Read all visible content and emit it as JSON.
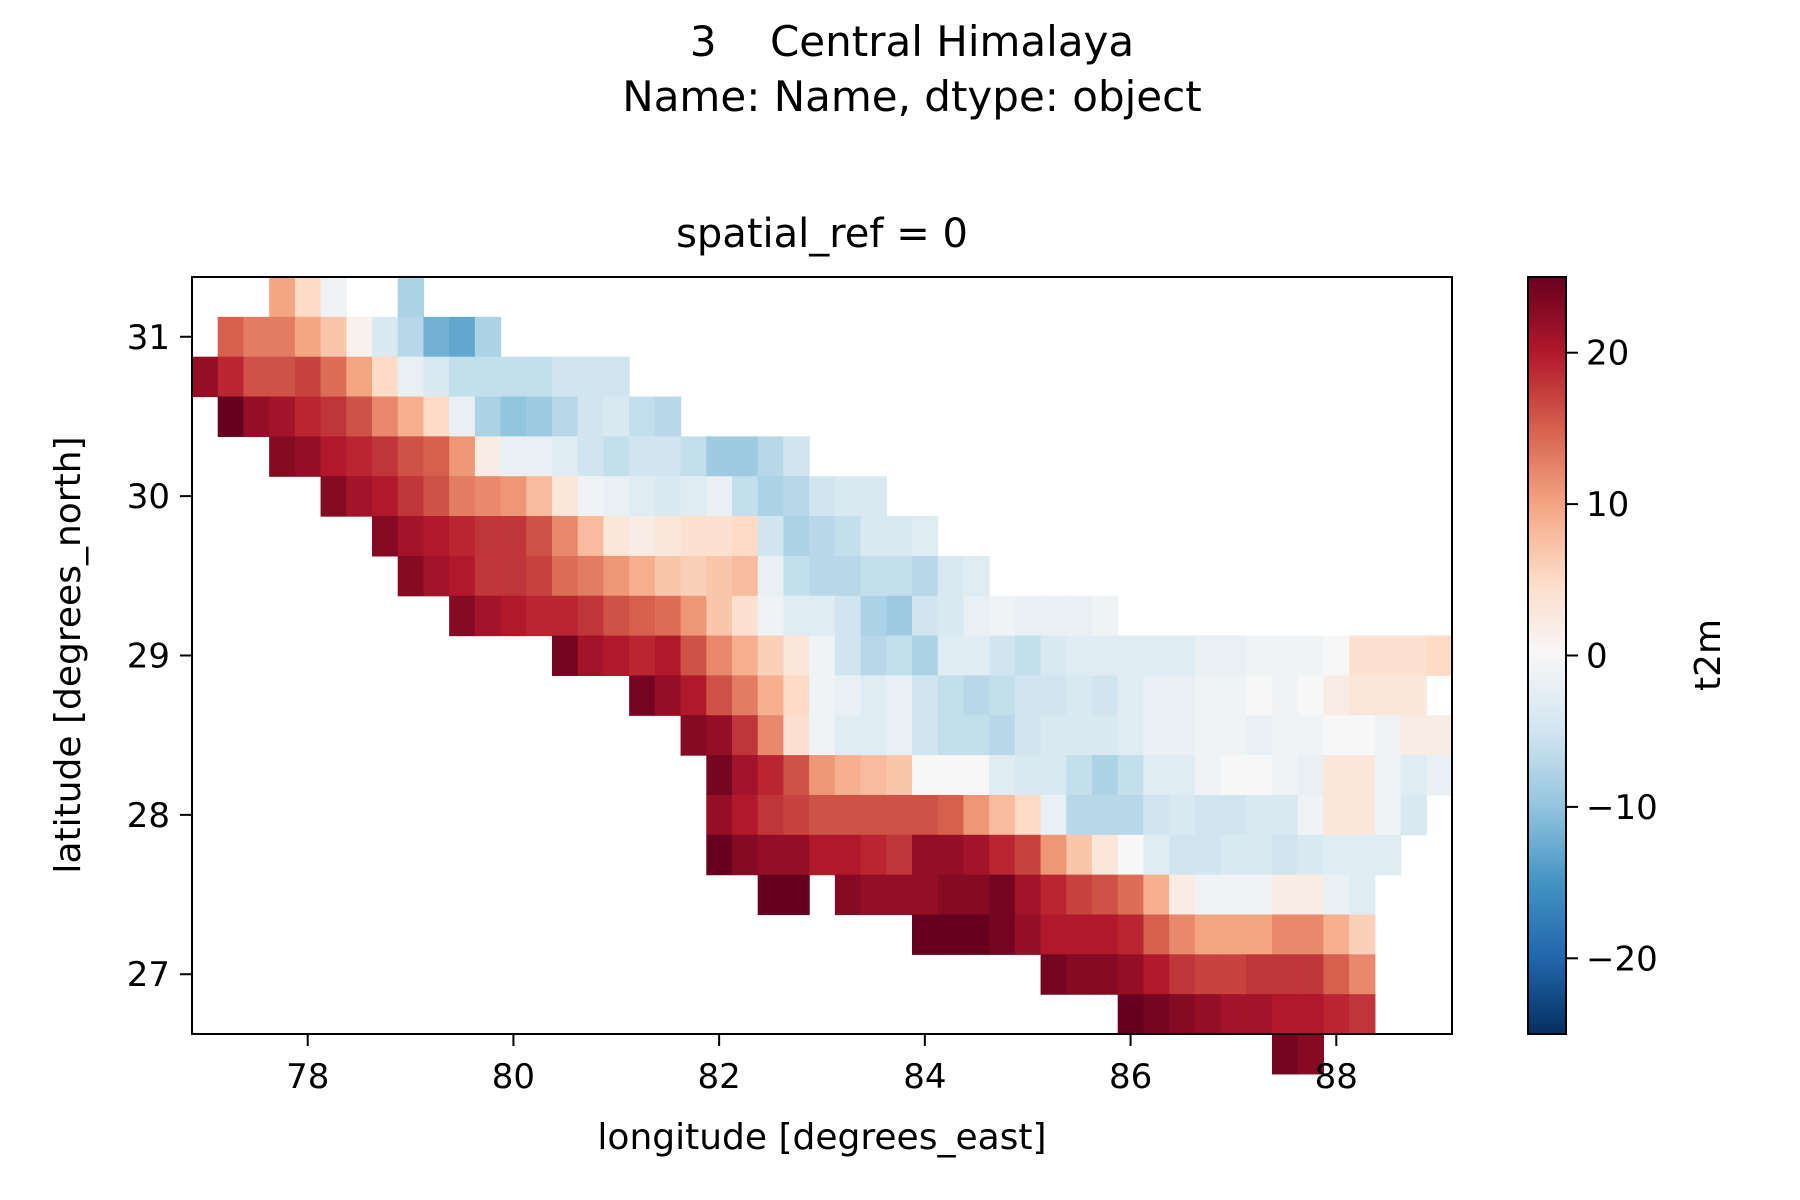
{
  "figure": {
    "suptitle_line1": "3    Central Himalaya",
    "suptitle_line2": "Name: Name, dtype: object"
  },
  "chart_data": {
    "type": "heatmap",
    "title": "spatial_ref = 0",
    "xlabel": "longitude [degrees_east]",
    "ylabel": "latitude [degrees_north]",
    "xlim": [
      76.875,
      89.125
    ],
    "ylim": [
      26.625,
      31.375
    ],
    "xticks": [
      78,
      80,
      82,
      84,
      86,
      88
    ],
    "yticks": [
      27,
      28,
      29,
      30,
      31
    ],
    "grid": false,
    "cell_size_deg": 0.25,
    "x_start": 77.0,
    "y_start": 31.25,
    "colormap": "RdBu_r",
    "colorbar": {
      "label": "t2m",
      "vmin": -25,
      "vmax": 25,
      "ticks": [
        -20,
        -10,
        0,
        10,
        20
      ],
      "tick_labels": [
        "−20",
        "−10",
        "0",
        "10",
        "20"
      ]
    },
    "t2m_rows": [
      [
        null,
        null,
        null,
        10,
        5,
        -1,
        null,
        null,
        -8,
        null,
        null,
        null,
        null,
        null,
        null,
        null,
        null,
        null,
        null,
        null,
        null,
        null,
        null,
        null,
        null,
        null,
        null,
        null,
        null,
        null,
        null,
        null,
        null,
        null,
        null,
        null,
        null,
        null,
        null,
        null,
        null,
        null,
        null,
        null,
        null,
        null,
        null,
        null,
        null
      ],
      [
        null,
        15,
        13,
        13,
        10,
        7,
        1,
        -4,
        -7,
        -12,
        -13,
        -8,
        null,
        null,
        null,
        null,
        null,
        null,
        null,
        null,
        null,
        null,
        null,
        null,
        null,
        null,
        null,
        null,
        null,
        null,
        null,
        null,
        null,
        null,
        null,
        null,
        null,
        null,
        null,
        null,
        null,
        null,
        null,
        null,
        null,
        null,
        null,
        null,
        null
      ],
      [
        22,
        19,
        16,
        16,
        17,
        14,
        10,
        5,
        -2,
        -4,
        -6,
        -6,
        -6,
        -6,
        -5,
        -5,
        -5,
        null,
        null,
        null,
        null,
        null,
        null,
        null,
        null,
        null,
        null,
        null,
        null,
        null,
        null,
        null,
        null,
        null,
        null,
        null,
        null,
        null,
        null,
        null,
        null,
        null,
        null,
        null,
        null,
        null,
        null,
        null,
        null
      ],
      [
        null,
        25,
        22,
        21,
        19,
        18,
        16,
        12,
        9,
        5,
        -2,
        -8,
        -10,
        -9,
        -7,
        -5,
        -4,
        -6,
        -7,
        null,
        null,
        null,
        null,
        null,
        null,
        null,
        null,
        null,
        null,
        null,
        null,
        null,
        null,
        null,
        null,
        null,
        null,
        null,
        null,
        null,
        null,
        null,
        null,
        null,
        null,
        null,
        null,
        null,
        null
      ],
      [
        null,
        null,
        null,
        23,
        22,
        20,
        19,
        18,
        16,
        15,
        11,
        2,
        -2,
        -2,
        -3,
        -5,
        -6,
        -5,
        -5,
        -6,
        -9,
        -9,
        -7,
        -5,
        null,
        null,
        null,
        null,
        null,
        null,
        null,
        null,
        null,
        null,
        null,
        null,
        null,
        null,
        null,
        null,
        null,
        null,
        null,
        null,
        null,
        null,
        null,
        null,
        null
      ],
      [
        null,
        null,
        null,
        null,
        null,
        23,
        21,
        20,
        18,
        16,
        13,
        12,
        11,
        8,
        3,
        -1,
        -2,
        -3,
        -4,
        -3,
        -2,
        -6,
        -8,
        -7,
        -5,
        -4,
        -4,
        null,
        null,
        null,
        null,
        null,
        null,
        null,
        null,
        null,
        null,
        null,
        null,
        null,
        null,
        null,
        null,
        null,
        null,
        null,
        null,
        null,
        null
      ],
      [
        null,
        null,
        null,
        null,
        null,
        null,
        null,
        23,
        21,
        20,
        19,
        18,
        18,
        16,
        12,
        8,
        3,
        2,
        3,
        4,
        4,
        5,
        -5,
        -8,
        -7,
        -6,
        -4,
        -4,
        -3,
        null,
        null,
        null,
        null,
        null,
        null,
        null,
        null,
        null,
        null,
        null,
        null,
        null,
        null,
        null,
        null,
        null,
        null,
        null,
        null
      ],
      [
        null,
        null,
        null,
        null,
        null,
        null,
        null,
        null,
        23,
        21,
        20,
        18,
        18,
        17,
        14,
        13,
        11,
        9,
        7,
        6,
        7,
        8,
        -2,
        -6,
        -7,
        -7,
        -6,
        -6,
        -7,
        -4,
        -3,
        null,
        null,
        null,
        null,
        null,
        null,
        null,
        null,
        null,
        null,
        null,
        null,
        null,
        null,
        null,
        null,
        null,
        null
      ],
      [
        null,
        null,
        null,
        null,
        null,
        null,
        null,
        null,
        null,
        null,
        23,
        21,
        20,
        19,
        19,
        18,
        16,
        15,
        14,
        11,
        7,
        4,
        -1,
        -3,
        -3,
        -5,
        -8,
        -9,
        -5,
        -4,
        -2,
        -1,
        -2,
        -2,
        -2,
        -1,
        null,
        null,
        null,
        null,
        null,
        null,
        null,
        null,
        null,
        null,
        null,
        null,
        null
      ],
      [
        null,
        null,
        null,
        null,
        null,
        null,
        null,
        null,
        null,
        null,
        null,
        null,
        null,
        null,
        24,
        21,
        20,
        19,
        20,
        16,
        12,
        9,
        6,
        3,
        -1,
        -5,
        -7,
        -6,
        -8,
        -3,
        -3,
        -5,
        -6,
        -4,
        -3,
        -3,
        -3,
        -3,
        -3,
        -2,
        -2,
        -1,
        -1,
        -1,
        0,
        4,
        4,
        4,
        5
      ],
      [
        null,
        null,
        null,
        null,
        null,
        null,
        null,
        null,
        null,
        null,
        null,
        null,
        null,
        null,
        null,
        null,
        null,
        24,
        22,
        20,
        16,
        13,
        9,
        5,
        -1,
        -2,
        -3,
        -2,
        -5,
        -6,
        -7,
        -6,
        -5,
        -5,
        -4,
        -5,
        -3,
        -2,
        -2,
        -1,
        -1,
        0,
        -1,
        0,
        2,
        3,
        3,
        3,
        null
      ],
      [
        null,
        null,
        null,
        null,
        null,
        null,
        null,
        null,
        null,
        null,
        null,
        null,
        null,
        null,
        null,
        null,
        null,
        null,
        null,
        23,
        22,
        18,
        12,
        4,
        -1,
        -3,
        -3,
        -2,
        -5,
        -6,
        -6,
        -7,
        -5,
        -4,
        -4,
        -4,
        -3,
        -2,
        -2,
        -1,
        -1,
        -2,
        -1,
        -1,
        0,
        0,
        -1,
        2,
        2
      ],
      [
        null,
        null,
        null,
        null,
        null,
        null,
        null,
        null,
        null,
        null,
        null,
        null,
        null,
        null,
        null,
        null,
        null,
        null,
        null,
        null,
        24,
        21,
        19,
        16,
        11,
        9,
        8,
        7,
        0,
        0,
        0,
        -3,
        -4,
        -4,
        -6,
        -8,
        -6,
        -3,
        -3,
        -1,
        0,
        0,
        -1,
        -2,
        3,
        3,
        -1,
        -3,
        -2
      ],
      [
        null,
        null,
        null,
        null,
        null,
        null,
        null,
        null,
        null,
        null,
        null,
        null,
        null,
        null,
        null,
        null,
        null,
        null,
        null,
        null,
        22,
        20,
        18,
        17,
        16,
        16,
        16,
        16,
        16,
        15,
        11,
        8,
        5,
        -2,
        -7,
        -7,
        -7,
        -5,
        -4,
        -5,
        -5,
        -4,
        -4,
        -1,
        3,
        3,
        -1,
        -4,
        null
      ],
      [
        null,
        null,
        null,
        null,
        null,
        null,
        null,
        null,
        null,
        null,
        null,
        null,
        null,
        null,
        null,
        null,
        null,
        null,
        null,
        null,
        25,
        23,
        22,
        22,
        20,
        20,
        19,
        18,
        22,
        22,
        21,
        19,
        17,
        11,
        7,
        3,
        0,
        -3,
        -5,
        -5,
        -4,
        -4,
        -5,
        -4,
        -3,
        -3,
        -3,
        null,
        null
      ],
      [
        null,
        null,
        null,
        null,
        null,
        null,
        null,
        null,
        null,
        null,
        null,
        null,
        null,
        null,
        null,
        null,
        null,
        null,
        null,
        null,
        null,
        null,
        25,
        25,
        null,
        23,
        22,
        22,
        22,
        23,
        23,
        24,
        21,
        19,
        17,
        16,
        14,
        9,
        2,
        -1,
        -1,
        -1,
        2,
        2,
        -2,
        -3,
        null,
        null,
        null
      ],
      [
        null,
        null,
        null,
        null,
        null,
        null,
        null,
        null,
        null,
        null,
        null,
        null,
        null,
        null,
        null,
        null,
        null,
        null,
        null,
        null,
        null,
        null,
        null,
        null,
        null,
        null,
        null,
        null,
        25,
        25,
        25,
        24,
        22,
        20,
        20,
        20,
        19,
        15,
        12,
        10,
        10,
        10,
        12,
        12,
        9,
        6,
        null,
        null,
        null
      ],
      [
        null,
        null,
        null,
        null,
        null,
        null,
        null,
        null,
        null,
        null,
        null,
        null,
        null,
        null,
        null,
        null,
        null,
        null,
        null,
        null,
        null,
        null,
        null,
        null,
        null,
        null,
        null,
        null,
        null,
        null,
        null,
        null,
        null,
        24,
        23,
        23,
        22,
        20,
        18,
        17,
        17,
        18,
        18,
        18,
        15,
        12,
        null,
        null,
        null
      ],
      [
        null,
        null,
        null,
        null,
        null,
        null,
        null,
        null,
        null,
        null,
        null,
        null,
        null,
        null,
        null,
        null,
        null,
        null,
        null,
        null,
        null,
        null,
        null,
        null,
        null,
        null,
        null,
        null,
        null,
        null,
        null,
        null,
        null,
        null,
        null,
        null,
        25,
        24,
        23,
        22,
        21,
        21,
        20,
        20,
        19,
        18,
        null,
        null,
        null
      ],
      [
        null,
        null,
        null,
        null,
        null,
        null,
        null,
        null,
        null,
        null,
        null,
        null,
        null,
        null,
        null,
        null,
        null,
        null,
        null,
        null,
        null,
        null,
        null,
        null,
        null,
        null,
        null,
        null,
        null,
        null,
        null,
        null,
        null,
        null,
        null,
        null,
        null,
        null,
        null,
        null,
        null,
        null,
        24,
        23,
        null,
        null,
        null,
        null,
        null
      ]
    ]
  }
}
